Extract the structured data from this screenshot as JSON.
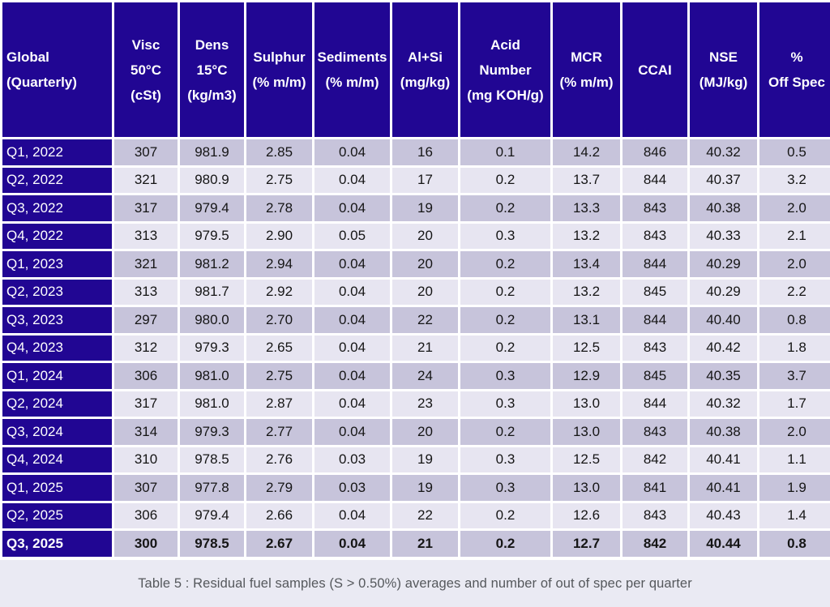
{
  "chart_data": {
    "type": "table",
    "title": "Table 5 : Residual fuel samples (S > 0.50%) averages and number of out of spec per quarter",
    "columns": [
      "Global\n(Quarterly)",
      "Visc\n50°C\n(cSt)",
      "Dens\n15°C\n(kg/m3)",
      "Sulphur\n(% m/m)",
      "Sediments\n(% m/m)",
      "Al+Si\n(mg/kg)",
      "Acid\nNumber\n(mg KOH/g)",
      "MCR\n(% m/m)",
      "CCAI",
      "NSE\n(MJ/kg)",
      "%\nOff Spec"
    ],
    "rows": [
      {
        "label": "Q1, 2022",
        "bold": false,
        "values": [
          "307",
          "981.9",
          "2.85",
          "0.04",
          "16",
          "0.1",
          "14.2",
          "846",
          "40.32",
          "0.5"
        ]
      },
      {
        "label": "Q2, 2022",
        "bold": false,
        "values": [
          "321",
          "980.9",
          "2.75",
          "0.04",
          "17",
          "0.2",
          "13.7",
          "844",
          "40.37",
          "3.2"
        ]
      },
      {
        "label": "Q3, 2022",
        "bold": false,
        "values": [
          "317",
          "979.4",
          "2.78",
          "0.04",
          "19",
          "0.2",
          "13.3",
          "843",
          "40.38",
          "2.0"
        ]
      },
      {
        "label": "Q4, 2022",
        "bold": false,
        "values": [
          "313",
          "979.5",
          "2.90",
          "0.05",
          "20",
          "0.3",
          "13.2",
          "843",
          "40.33",
          "2.1"
        ]
      },
      {
        "label": "Q1, 2023",
        "bold": false,
        "values": [
          "321",
          "981.2",
          "2.94",
          "0.04",
          "20",
          "0.2",
          "13.4",
          "844",
          "40.29",
          "2.0"
        ]
      },
      {
        "label": "Q2, 2023",
        "bold": false,
        "values": [
          "313",
          "981.7",
          "2.92",
          "0.04",
          "20",
          "0.2",
          "13.2",
          "845",
          "40.29",
          "2.2"
        ]
      },
      {
        "label": "Q3, 2023",
        "bold": false,
        "values": [
          "297",
          "980.0",
          "2.70",
          "0.04",
          "22",
          "0.2",
          "13.1",
          "844",
          "40.40",
          "0.8"
        ]
      },
      {
        "label": "Q4, 2023",
        "bold": false,
        "values": [
          "312",
          "979.3",
          "2.65",
          "0.04",
          "21",
          "0.2",
          "12.5",
          "843",
          "40.42",
          "1.8"
        ]
      },
      {
        "label": "Q1, 2024",
        "bold": false,
        "values": [
          "306",
          "981.0",
          "2.75",
          "0.04",
          "24",
          "0.3",
          "12.9",
          "845",
          "40.35",
          "3.7"
        ]
      },
      {
        "label": "Q2, 2024",
        "bold": false,
        "values": [
          "317",
          "981.0",
          "2.87",
          "0.04",
          "23",
          "0.3",
          "13.0",
          "844",
          "40.32",
          "1.7"
        ]
      },
      {
        "label": "Q3, 2024",
        "bold": false,
        "values": [
          "314",
          "979.3",
          "2.77",
          "0.04",
          "20",
          "0.2",
          "13.0",
          "843",
          "40.38",
          "2.0"
        ]
      },
      {
        "label": "Q4, 2024",
        "bold": false,
        "values": [
          "310",
          "978.5",
          "2.76",
          "0.03",
          "19",
          "0.3",
          "12.5",
          "842",
          "40.41",
          "1.1"
        ]
      },
      {
        "label": "Q1, 2025",
        "bold": false,
        "values": [
          "307",
          "977.8",
          "2.79",
          "0.03",
          "19",
          "0.3",
          "13.0",
          "841",
          "40.41",
          "1.9"
        ]
      },
      {
        "label": "Q2, 2025",
        "bold": false,
        "values": [
          "306",
          "979.4",
          "2.66",
          "0.04",
          "22",
          "0.2",
          "12.6",
          "843",
          "40.43",
          "1.4"
        ]
      },
      {
        "label": "Q3, 2025",
        "bold": true,
        "values": [
          "300",
          "978.5",
          "2.67",
          "0.04",
          "21",
          "0.2",
          "12.7",
          "842",
          "40.44",
          "0.8"
        ]
      }
    ]
  },
  "caption": "Table 5 : Residual fuel samples (S > 0.50%) averages and number of out of spec per quarter",
  "colors": {
    "header_navy": "#210693",
    "stripe_dark": "#c7c4db",
    "stripe_light": "#e7e5f1",
    "grid_white": "#ffffff",
    "caption_background": "#eaeaf3",
    "caption_text": "#55585c",
    "data_text": "#151515"
  }
}
